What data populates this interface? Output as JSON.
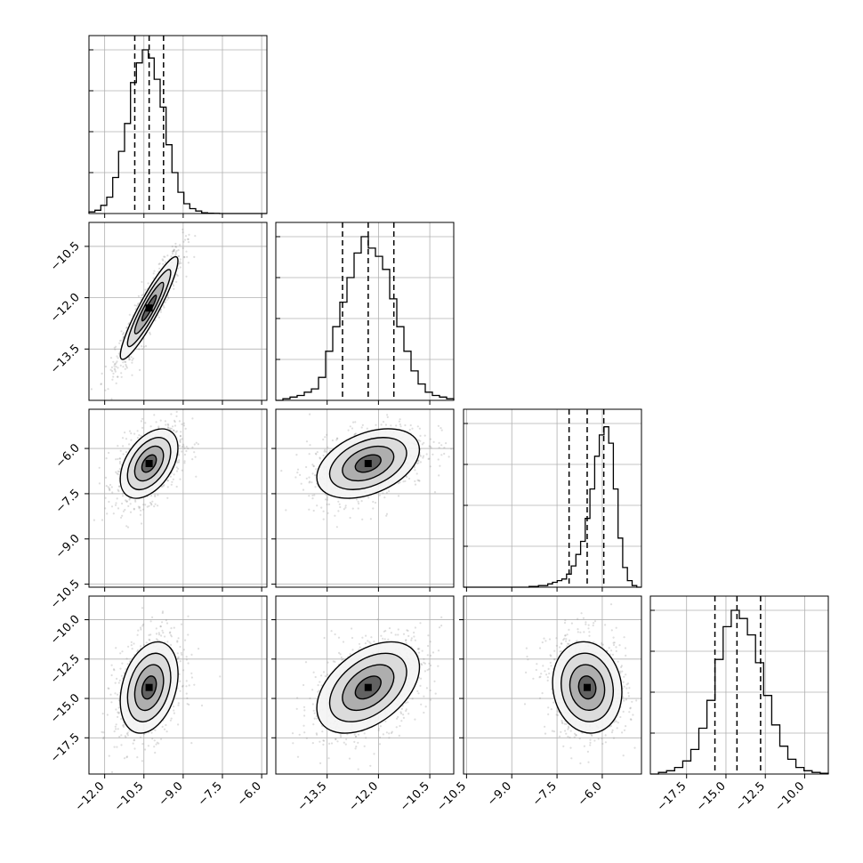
{
  "chart_data": {
    "type": "corner",
    "parameters": [
      {
        "label": "",
        "median": -10.3,
        "q16": -10.85,
        "q84": -9.75,
        "range": [
          -12.6,
          -5.8
        ],
        "ticks": [
          -12.0,
          -10.5,
          -9.0,
          -7.5,
          -6.0
        ],
        "tick_labels": [
          "−12.0",
          "−10.5",
          "−9.0",
          "−7.5",
          "−6.0"
        ]
      },
      {
        "label": "",
        "median": -12.3,
        "q16": -13.05,
        "q84": -11.55,
        "range": [
          -15.0,
          -9.8
        ],
        "ticks": [
          -13.5,
          -12.0,
          -10.5
        ],
        "tick_labels": [
          "−13.5",
          "−12.0",
          "−10.5"
        ]
      },
      {
        "label": "",
        "median": -6.5,
        "q16": -7.1,
        "q84": -5.95,
        "range": [
          -10.6,
          -4.7
        ],
        "ticks": [
          -10.5,
          -9.0,
          -7.5,
          -6.0
        ],
        "tick_labels": [
          "−10.5",
          "−9.0",
          "−7.5",
          "−6.0"
        ]
      },
      {
        "label": "",
        "median": -14.3,
        "q16": -15.7,
        "q84": -12.8,
        "range": [
          -19.8,
          -8.5
        ],
        "ticks": [
          -17.5,
          -15.0,
          -12.5,
          -10.0
        ],
        "tick_labels": [
          "−17.5",
          "−15.0",
          "−12.5",
          "−10.0"
        ]
      }
    ],
    "histograms": [
      {
        "param": 0,
        "counts": [
          0.01,
          0.02,
          0.05,
          0.1,
          0.22,
          0.38,
          0.55,
          0.8,
          0.92,
          1.0,
          0.95,
          0.82,
          0.65,
          0.42,
          0.25,
          0.13,
          0.06,
          0.03,
          0.015,
          0.005,
          0.002,
          0.001,
          0.0,
          0.0,
          0.0,
          0.0,
          0.0,
          0.0,
          0.0,
          0.0
        ]
      },
      {
        "param": 1,
        "counts": [
          0.0,
          0.01,
          0.02,
          0.03,
          0.05,
          0.07,
          0.14,
          0.3,
          0.45,
          0.6,
          0.75,
          0.9,
          1.0,
          0.93,
          0.88,
          0.8,
          0.62,
          0.45,
          0.3,
          0.18,
          0.1,
          0.05,
          0.03,
          0.02,
          0.01
        ]
      },
      {
        "param": 2,
        "counts": [
          0.0,
          0.0,
          0.0,
          0.0,
          0.0,
          0.0,
          0.0,
          0.0,
          0.0,
          0.0,
          0.0,
          0.0,
          0.0,
          0.0,
          0.005,
          0.005,
          0.01,
          0.01,
          0.02,
          0.03,
          0.04,
          0.05,
          0.08,
          0.13,
          0.2,
          0.28,
          0.42,
          0.6,
          0.8,
          0.93,
          0.98,
          0.88,
          0.6,
          0.3,
          0.12,
          0.04,
          0.01,
          0.0
        ]
      },
      {
        "param": 3,
        "counts": [
          0.0,
          0.01,
          0.02,
          0.04,
          0.08,
          0.15,
          0.28,
          0.45,
          0.7,
          0.9,
          1.0,
          0.95,
          0.85,
          0.68,
          0.48,
          0.3,
          0.17,
          0.09,
          0.04,
          0.02,
          0.01,
          0.005
        ]
      }
    ],
    "pairs": [
      {
        "x": 0,
        "y": 1,
        "rho": 0.92
      },
      {
        "x": 0,
        "y": 2,
        "rho": 0.45
      },
      {
        "x": 1,
        "y": 2,
        "rho": 0.4
      },
      {
        "x": 0,
        "y": 3,
        "rho": 0.3
      },
      {
        "x": 1,
        "y": 3,
        "rho": 0.45
      },
      {
        "x": 2,
        "y": 3,
        "rho": -0.1
      }
    ],
    "grid": true,
    "contour_levels": [
      "0.5-sigma",
      "1-sigma",
      "1.5-sigma",
      "2-sigma"
    ]
  }
}
